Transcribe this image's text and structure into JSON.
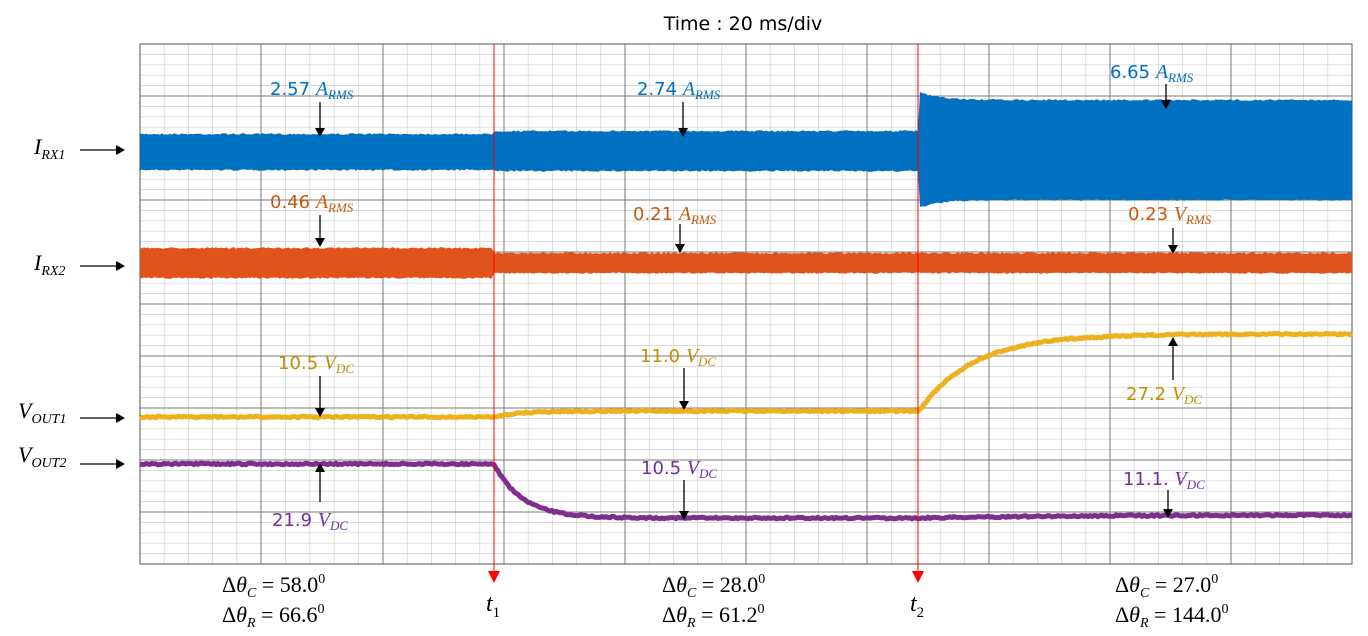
{
  "chart_data": {
    "type": "line",
    "title": "Time : 20 ms/div",
    "grid": true,
    "markers": {
      "t1": {
        "main": "t",
        "sub": "1"
      },
      "t2": {
        "main": "t",
        "sub": "2"
      }
    },
    "channels": [
      {
        "id": "irx1",
        "main": "I",
        "sub": "RX1",
        "color": "#0070C0"
      },
      {
        "id": "irx2",
        "main": "I",
        "sub": "RX2",
        "color": "#E0541C"
      },
      {
        "id": "vout1",
        "main": "V",
        "sub": "OUT1",
        "color": "#EDB120"
      },
      {
        "id": "vout2",
        "main": "V",
        "sub": "OUT2",
        "color": "#7E2F8E"
      }
    ],
    "annotations": [
      {
        "id": "a1",
        "value": "2.57",
        "unit": "A",
        "sub": "RMS",
        "color": "#0070C0"
      },
      {
        "id": "a2",
        "value": "2.74",
        "unit": "A",
        "sub": "RMS",
        "color": "#0070C0"
      },
      {
        "id": "a3",
        "value": "6.65",
        "unit": "A",
        "sub": "RMS",
        "color": "#0070C0"
      },
      {
        "id": "a4",
        "value": "0.46",
        "unit": "A",
        "sub": "RMS",
        "color": "#C55A11"
      },
      {
        "id": "a5",
        "value": "0.21",
        "unit": "A",
        "sub": "RMS",
        "color": "#C55A11"
      },
      {
        "id": "a6",
        "value": "0.23",
        "unit": "V",
        "sub": "RMS",
        "color": "#C55A11"
      },
      {
        "id": "a7",
        "value": "10.5",
        "unit": "V",
        "sub": "DC",
        "color": "#BF9000"
      },
      {
        "id": "a8",
        "value": "11.0",
        "unit": "V",
        "sub": "DC",
        "color": "#BF9000"
      },
      {
        "id": "a9",
        "value": "27.2",
        "unit": "V",
        "sub": "DC",
        "color": "#BF9000"
      },
      {
        "id": "a10",
        "value": "21.9",
        "unit": "V",
        "sub": "DC",
        "color": "#7030A0"
      },
      {
        "id": "a11",
        "value": "10.5",
        "unit": "V",
        "sub": "DC",
        "color": "#7030A0"
      },
      {
        "id": "a12",
        "value": "11.1.",
        "unit": "V",
        "sub": "DC",
        "color": "#7030A0"
      }
    ],
    "intervals": [
      {
        "id": "i1",
        "theta_c": "58.0",
        "theta_r": "66.6"
      },
      {
        "id": "i2",
        "theta_c": "28.0",
        "theta_r": "61.2"
      },
      {
        "id": "i3",
        "theta_c": "27.0",
        "theta_r": "144.0"
      }
    ],
    "eq_labels": {
      "delta": "Δ",
      "theta": "θ",
      "c": "C",
      "r": "R",
      "eq": " = ",
      "deg": "0"
    }
  }
}
